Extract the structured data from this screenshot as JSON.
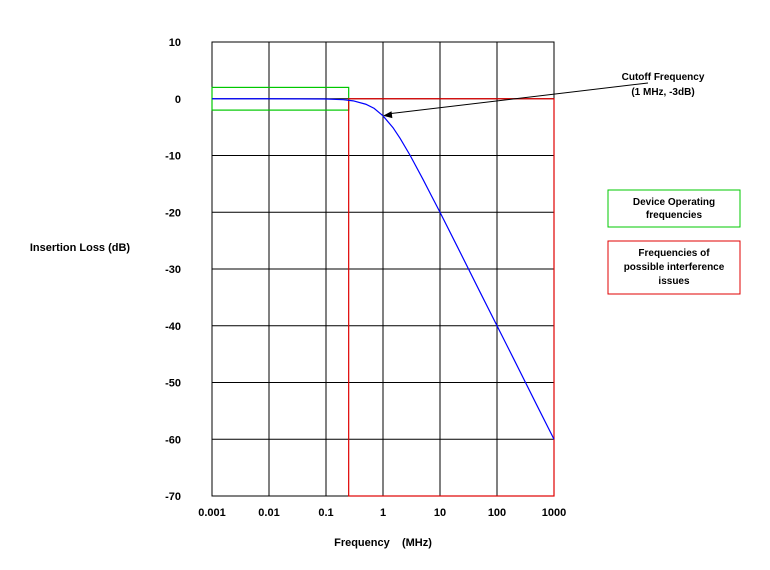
{
  "chart_data": {
    "type": "line",
    "xlabel": "Frequency    (MHz)",
    "ylabel": "Insertion Loss (dB)",
    "x_scale": "log",
    "xlim": [
      0.001,
      1000
    ],
    "ylim": [
      -70,
      10
    ],
    "x_ticks": [
      0.001,
      0.01,
      0.1,
      1,
      10,
      100,
      1000
    ],
    "x_tick_labels": [
      "0.001",
      "0.01",
      "0.1",
      "1",
      "10",
      "100",
      "1000"
    ],
    "y_ticks": [
      10,
      0,
      -10,
      -20,
      -30,
      -40,
      -50,
      -60,
      -70
    ],
    "y_tick_labels": [
      "10",
      "0",
      "-10",
      "-20",
      "-30",
      "-40",
      "-50",
      "-60",
      "-70"
    ],
    "grid": true,
    "series": [
      {
        "color": "#0000ff",
        "x": [
          0.001,
          0.01,
          0.1,
          0.2,
          0.3,
          0.5,
          0.7,
          1,
          1.5,
          2,
          3,
          5,
          7,
          10,
          20,
          50,
          100,
          200,
          500,
          1000
        ],
        "y": [
          0,
          0,
          -0.04,
          -0.17,
          -0.37,
          -0.97,
          -1.7,
          -3.01,
          -5.1,
          -6.99,
          -10,
          -14.15,
          -17.0,
          -20.0,
          -26.0,
          -34.0,
          -40.0,
          -46.0,
          -54.0,
          -60.0
        ]
      }
    ],
    "regions": [
      {
        "label": "Device Operating frequencies",
        "x_range": [
          0.001,
          0.25
        ],
        "y_range": [
          -2,
          2
        ],
        "color": "#00c800"
      },
      {
        "label": "Frequencies of possible interference issues",
        "x_range": [
          0.25,
          1000
        ],
        "y_range": [
          -70,
          0
        ],
        "color": "#e00000"
      }
    ],
    "annotations": [
      {
        "text_lines": [
          "Cutoff Frequency",
          "(1 MHz, -3dB)"
        ],
        "points_to": {
          "x": 1,
          "y": -3
        }
      }
    ],
    "legend": [
      {
        "lines": [
          "Device Operating",
          "frequencies"
        ],
        "color": "#00c800"
      },
      {
        "lines": [
          "Frequencies of",
          "possible interference",
          "issues"
        ],
        "color": "#e00000"
      }
    ]
  }
}
